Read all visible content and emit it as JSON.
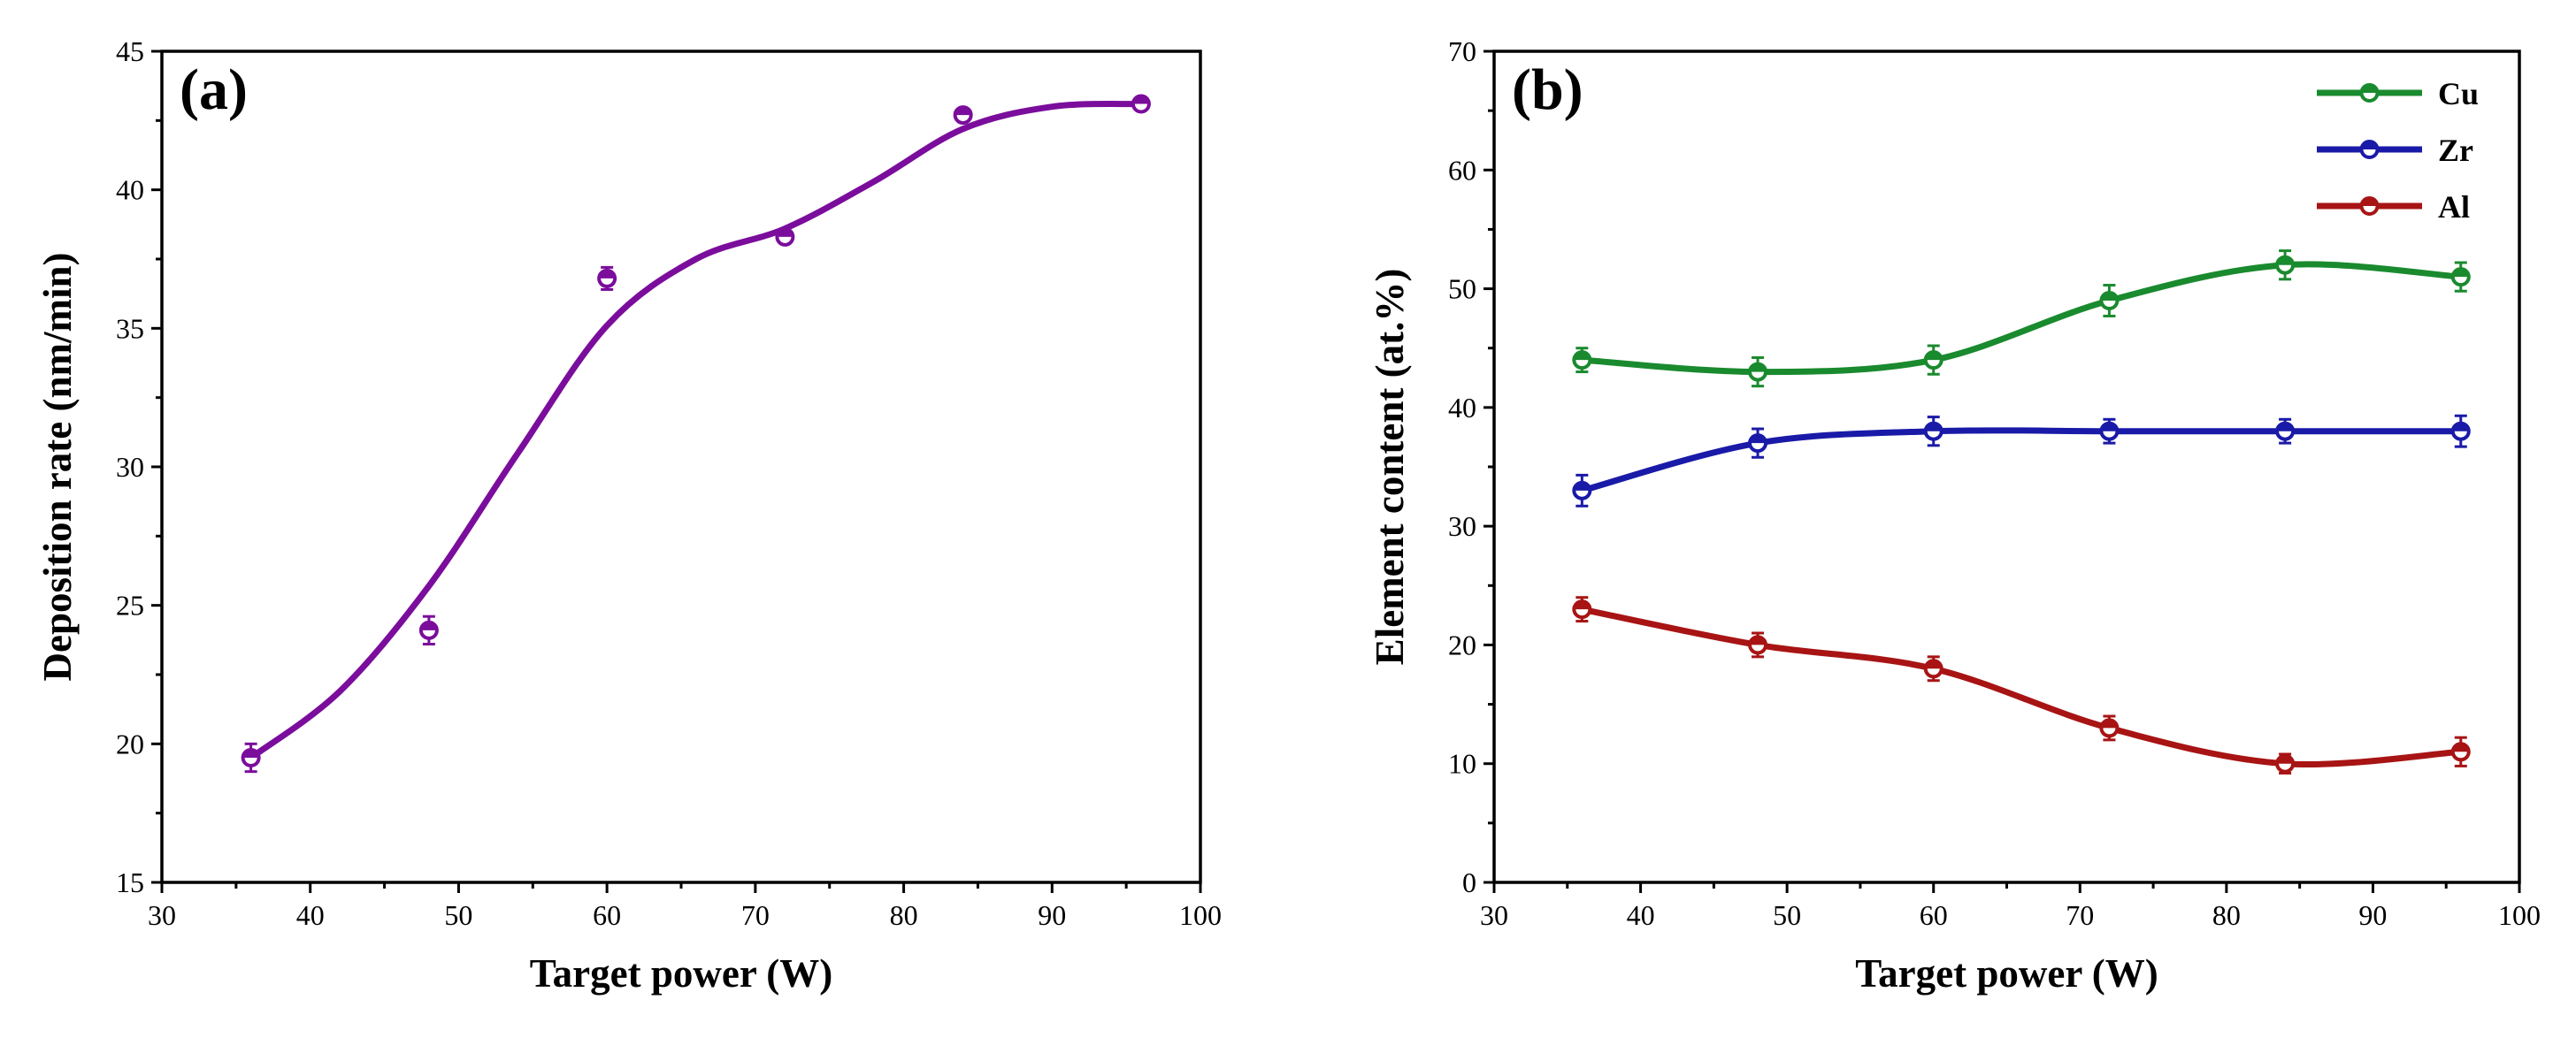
{
  "chart_data": [
    {
      "type": "line",
      "panel_label": "(a)",
      "xlabel": "Target power (W)",
      "ylabel": "Deposition rate (nm/min)",
      "xlim": [
        30,
        100
      ],
      "ylim": [
        15,
        45
      ],
      "xticks": [
        30,
        40,
        50,
        60,
        70,
        80,
        90,
        100
      ],
      "yticks": [
        15,
        20,
        25,
        30,
        35,
        40,
        45
      ],
      "grid": false,
      "series": [
        {
          "name": "Deposition rate",
          "color": "#7b0d9c",
          "x": [
            36,
            48,
            60,
            72,
            84,
            96
          ],
          "y": [
            19.5,
            24.1,
            36.8,
            38.3,
            42.7,
            43.1
          ],
          "error": [
            0.5,
            0.5,
            0.4,
            0.2,
            0.2,
            0.2
          ]
        }
      ],
      "fit_curve": {
        "color": "#7b0d9c",
        "x": [
          36,
          42,
          48,
          54,
          60,
          66,
          72,
          78,
          84,
          90,
          96
        ],
        "y": [
          19.5,
          21.9,
          25.7,
          30.5,
          35.1,
          37.5,
          38.6,
          40.3,
          42.2,
          43.0,
          43.1
        ]
      }
    },
    {
      "type": "line",
      "panel_label": "(b)",
      "xlabel": "Target power (W)",
      "ylabel": "Element content (at.%)",
      "xlim": [
        30,
        100
      ],
      "ylim": [
        0,
        70
      ],
      "xticks": [
        30,
        40,
        50,
        60,
        70,
        80,
        90,
        100
      ],
      "yticks": [
        0,
        10,
        20,
        30,
        40,
        50,
        60,
        70
      ],
      "grid": false,
      "legend_position": "top-right",
      "x": [
        36,
        48,
        60,
        72,
        84,
        96
      ],
      "series": [
        {
          "name": "Cu",
          "color": "#1a8a2e",
          "values": [
            44,
            43,
            44,
            49,
            52,
            51
          ],
          "error": [
            1,
            1.2,
            1.2,
            1.3,
            1.2,
            1.2
          ]
        },
        {
          "name": "Zr",
          "color": "#1a1aa8",
          "values": [
            33,
            37,
            38,
            38,
            38,
            38
          ],
          "error": [
            1.3,
            1.2,
            1.2,
            1,
            1,
            1.3
          ]
        },
        {
          "name": "Al",
          "color": "#a81414",
          "values": [
            23,
            20,
            18,
            13,
            10,
            11
          ],
          "error": [
            1,
            1,
            1,
            1,
            0.8,
            1.2
          ]
        }
      ]
    }
  ]
}
